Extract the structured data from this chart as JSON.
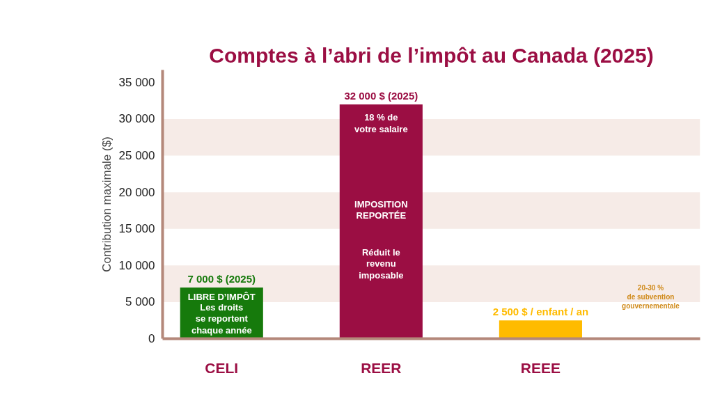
{
  "chart_data": {
    "type": "bar",
    "title": "Comptes à l’abri de l’impôt au Canada (2025)",
    "ylabel": "Contribution maximale ($)",
    "categories": [
      "CELI",
      "REER",
      "REEE"
    ],
    "values": [
      7000,
      32000,
      2500
    ],
    "colors": [
      "#167a0c",
      "#9b0e43",
      "#ffbb00"
    ],
    "value_labels": [
      "7 000 $ (2025)",
      "32 000 $ (2025)",
      "2 500 $ / enfant / an"
    ],
    "ylim": [
      0,
      36700
    ],
    "yticks": [
      {
        "value": 0,
        "label": "0"
      },
      {
        "value": 5000,
        "label": "5 000"
      },
      {
        "value": 10000,
        "label": "10 000"
      },
      {
        "value": 15000,
        "label": "15 000"
      },
      {
        "value": 20000,
        "label": "20 000"
      },
      {
        "value": 25000,
        "label": "25 000"
      },
      {
        "value": 30000,
        "label": "30 000"
      },
      {
        "value": 35000,
        "label": "35 000"
      }
    ],
    "bands": [
      {
        "axis": "y",
        "from": 5000,
        "to": 10000,
        "color": "#f6ebe7"
      },
      {
        "axis": "y",
        "from": 15000,
        "to": 20000,
        "color": "#f6ebe7"
      },
      {
        "axis": "y",
        "from": 25000,
        "to": 30000,
        "color": "#f6ebe7"
      }
    ],
    "annotations": [
      "LIBRE D’IMPÔT",
      "Les droits\nse reportent\nchaque année",
      "18 % de\nvotre salaire",
      "IMPOSITION\nREPORTÉE",
      "Réduit le\nrevenu\nimposable",
      "20-30 %\nde subvention\ngouvernementale"
    ],
    "grid": false
  }
}
